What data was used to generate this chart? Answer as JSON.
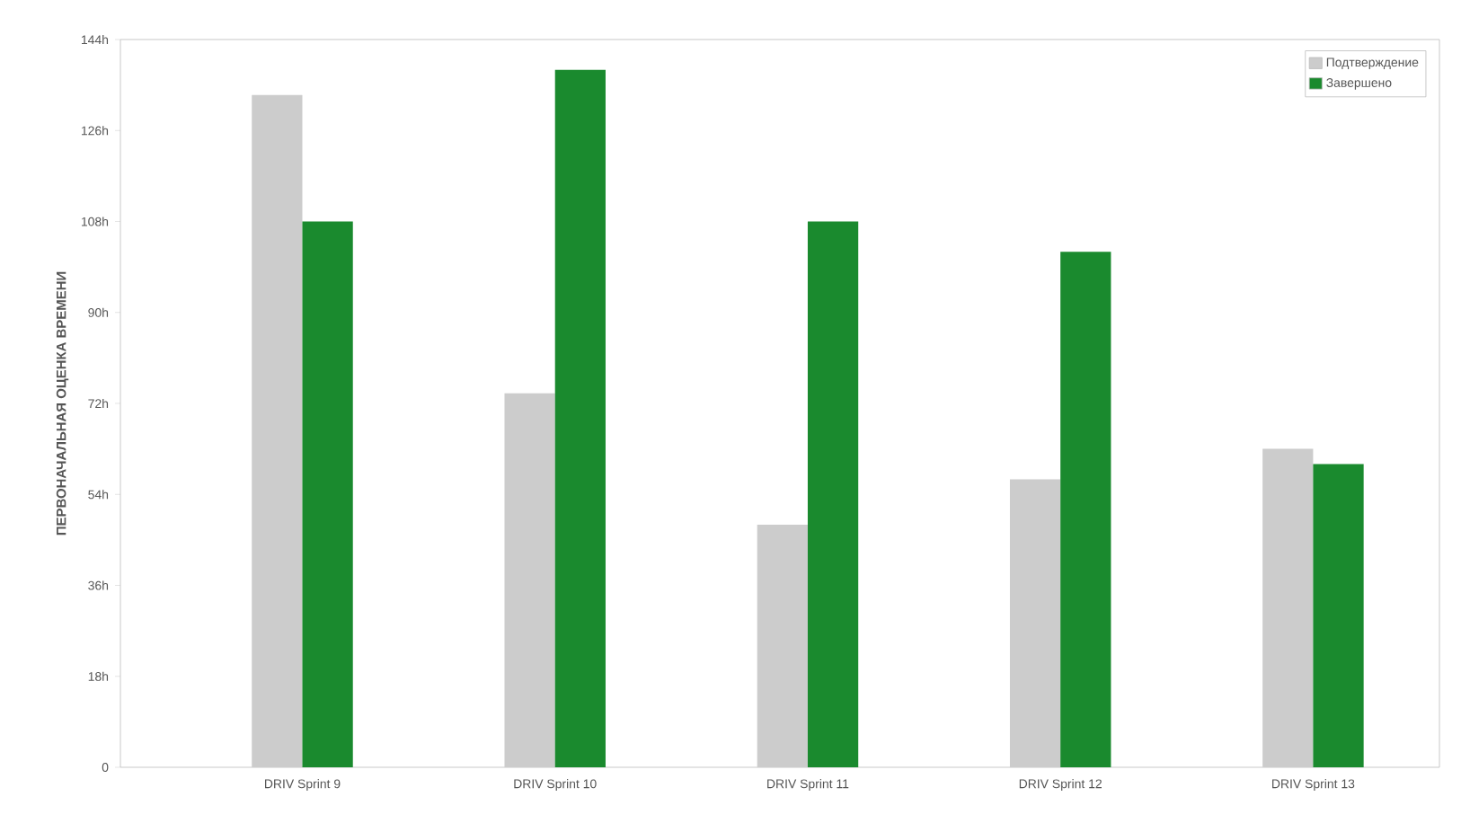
{
  "chart_data": {
    "type": "bar",
    "ylabel": "ПЕРВОНАЧАЛЬНАЯ ОЦЕНКА ВРЕМЕНИ",
    "categories": [
      "DRIV Sprint 9",
      "DRIV Sprint 10",
      "DRIV Sprint 11",
      "DRIV Sprint 12",
      "DRIV Sprint 13"
    ],
    "series": [
      {
        "name": "Подтверждение",
        "color": "#cccccc",
        "values": [
          133,
          74,
          48,
          57,
          63
        ]
      },
      {
        "name": "Завершено",
        "color": "#1a8a2e",
        "values": [
          108,
          138,
          108,
          102,
          60
        ]
      }
    ],
    "ylim": [
      0,
      144
    ],
    "yticks": [
      0,
      {
        "value": 18,
        "label": "18h"
      },
      {
        "value": 36,
        "label": "36h"
      },
      {
        "value": 54,
        "label": "54h"
      },
      {
        "value": 72,
        "label": "72h"
      },
      {
        "value": 90,
        "label": "90h"
      },
      {
        "value": 108,
        "label": "108h"
      },
      {
        "value": 126,
        "label": "126h"
      },
      {
        "value": 144,
        "label": "144h"
      }
    ],
    "grid": false,
    "legend": "top right"
  }
}
